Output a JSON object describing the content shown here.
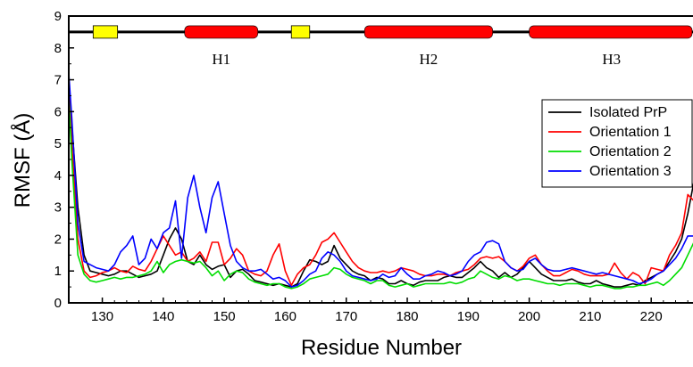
{
  "chart_data": {
    "type": "line",
    "xlabel": "Residue Number",
    "ylabel": "RMSF (Å)",
    "xlim": [
      124.5,
      227
    ],
    "ylim": [
      0,
      9
    ],
    "x_ticks": [
      130,
      140,
      150,
      160,
      170,
      180,
      190,
      200,
      210,
      220
    ],
    "y_ticks": [
      0,
      1,
      2,
      3,
      4,
      5,
      6,
      7,
      8,
      9
    ],
    "grid": false,
    "legend_position": "right",
    "secondary_structure": {
      "y": 8.5,
      "strands": [
        {
          "start": 128.5,
          "end": 132.5,
          "color": "#ffff00"
        },
        {
          "start": 161,
          "end": 164,
          "color": "#ffff00"
        }
      ],
      "helices": [
        {
          "start": 143.5,
          "end": 155.5,
          "label": "H1",
          "color": "#ff0000"
        },
        {
          "start": 173,
          "end": 194,
          "label": "H2",
          "color": "#ff0000"
        },
        {
          "start": 200,
          "end": 227,
          "label": "H3",
          "color": "#ff0000"
        }
      ]
    },
    "x": [
      124.5,
      125,
      126,
      127,
      128,
      129,
      130,
      131,
      132,
      133,
      134,
      135,
      136,
      137,
      138,
      139,
      140,
      141,
      142,
      143,
      144,
      145,
      146,
      147,
      148,
      149,
      150,
      151,
      152,
      153,
      154,
      155,
      156,
      157,
      158,
      159,
      160,
      161,
      162,
      163,
      164,
      165,
      166,
      167,
      168,
      169,
      170,
      171,
      172,
      173,
      174,
      175,
      176,
      177,
      178,
      179,
      180,
      181,
      182,
      183,
      184,
      185,
      186,
      187,
      188,
      189,
      190,
      191,
      192,
      193,
      194,
      195,
      196,
      197,
      198,
      199,
      200,
      201,
      202,
      203,
      204,
      205,
      206,
      207,
      208,
      209,
      210,
      211,
      212,
      213,
      214,
      215,
      216,
      217,
      218,
      219,
      220,
      221,
      222,
      223,
      224,
      225,
      226,
      227
    ],
    "series": [
      {
        "name": "Isolated PrP",
        "color": "#000000",
        "values": [
          7.0,
          5.6,
          3.0,
          1.5,
          1.0,
          0.95,
          0.9,
          0.85,
          0.9,
          1.0,
          1.0,
          0.9,
          0.8,
          0.85,
          0.9,
          1.0,
          1.5,
          2.0,
          2.35,
          2.0,
          1.3,
          1.2,
          1.5,
          1.2,
          1.05,
          1.15,
          1.2,
          0.8,
          1.0,
          1.05,
          0.9,
          0.7,
          0.65,
          0.6,
          0.55,
          0.6,
          0.55,
          0.5,
          0.6,
          1.0,
          1.35,
          1.3,
          1.2,
          1.3,
          1.8,
          1.4,
          1.2,
          1.0,
          0.9,
          0.85,
          0.7,
          0.8,
          0.75,
          0.6,
          0.6,
          0.7,
          0.6,
          0.55,
          0.65,
          0.7,
          0.7,
          0.7,
          0.8,
          0.85,
          0.8,
          0.8,
          0.95,
          1.1,
          1.3,
          1.1,
          1.0,
          0.8,
          0.95,
          0.8,
          0.9,
          1.1,
          1.3,
          1.1,
          0.9,
          0.8,
          0.7,
          0.7,
          0.7,
          0.75,
          0.65,
          0.6,
          0.6,
          0.7,
          0.6,
          0.55,
          0.5,
          0.5,
          0.55,
          0.6,
          0.55,
          0.7,
          0.8,
          0.9,
          1.0,
          1.3,
          1.6,
          2.0,
          2.8,
          3.8
        ]
      },
      {
        "name": "Orientation 1",
        "color": "#ff0000",
        "values": [
          6.8,
          5.0,
          2.0,
          1.0,
          0.8,
          0.85,
          0.95,
          1.0,
          1.1,
          1.0,
          0.95,
          1.15,
          1.05,
          1.0,
          1.3,
          1.7,
          2.1,
          1.8,
          1.5,
          1.6,
          1.3,
          1.4,
          1.6,
          1.3,
          1.9,
          1.9,
          1.2,
          1.4,
          1.7,
          1.5,
          1.0,
          0.9,
          0.85,
          1.0,
          1.5,
          1.85,
          1.0,
          0.55,
          0.9,
          1.1,
          1.2,
          1.5,
          1.9,
          2.0,
          2.2,
          1.9,
          1.6,
          1.3,
          1.1,
          1.0,
          0.95,
          0.95,
          1.0,
          0.95,
          1.0,
          1.1,
          1.05,
          1.0,
          0.9,
          0.85,
          0.85,
          0.9,
          0.9,
          0.85,
          0.95,
          1.0,
          1.05,
          1.2,
          1.4,
          1.45,
          1.4,
          1.45,
          1.3,
          1.1,
          1.0,
          1.15,
          1.4,
          1.5,
          1.2,
          1.0,
          0.85,
          0.85,
          0.95,
          1.05,
          1.0,
          0.9,
          0.85,
          0.85,
          0.85,
          0.9,
          1.25,
          0.95,
          0.75,
          0.95,
          0.85,
          0.6,
          1.1,
          1.05,
          1.0,
          1.5,
          1.8,
          2.2,
          3.4,
          3.2
        ]
      },
      {
        "name": "Orientation 2",
        "color": "#00dd00",
        "values": [
          6.5,
          4.5,
          1.5,
          0.9,
          0.7,
          0.65,
          0.7,
          0.75,
          0.8,
          0.75,
          0.8,
          0.8,
          0.85,
          0.9,
          1.0,
          1.3,
          0.95,
          1.2,
          1.3,
          1.35,
          1.3,
          1.25,
          1.3,
          1.1,
          0.85,
          1.0,
          0.7,
          0.9,
          1.0,
          0.95,
          0.75,
          0.65,
          0.6,
          0.55,
          0.6,
          0.6,
          0.5,
          0.45,
          0.5,
          0.6,
          0.75,
          0.8,
          0.85,
          0.9,
          1.1,
          1.05,
          0.9,
          0.8,
          0.75,
          0.7,
          0.6,
          0.7,
          0.7,
          0.55,
          0.5,
          0.55,
          0.6,
          0.5,
          0.55,
          0.6,
          0.6,
          0.6,
          0.6,
          0.65,
          0.6,
          0.65,
          0.75,
          0.8,
          1.0,
          0.9,
          0.8,
          0.75,
          0.85,
          0.8,
          0.7,
          0.75,
          0.75,
          0.7,
          0.65,
          0.6,
          0.6,
          0.55,
          0.6,
          0.6,
          0.6,
          0.55,
          0.5,
          0.55,
          0.55,
          0.5,
          0.45,
          0.45,
          0.5,
          0.5,
          0.55,
          0.55,
          0.6,
          0.65,
          0.55,
          0.7,
          0.9,
          1.1,
          1.5,
          1.9
        ]
      },
      {
        "name": "Orientation 3",
        "color": "#0000ff",
        "values": [
          7.2,
          5.8,
          2.5,
          1.3,
          1.2,
          1.1,
          1.05,
          1.0,
          1.2,
          1.6,
          1.8,
          2.1,
          1.2,
          1.4,
          2.0,
          1.7,
          2.2,
          2.35,
          3.2,
          1.4,
          3.3,
          4.0,
          3.0,
          2.2,
          3.3,
          3.8,
          2.8,
          1.8,
          1.3,
          1.1,
          1.0,
          1.0,
          1.05,
          0.9,
          0.75,
          0.8,
          0.7,
          0.5,
          0.55,
          0.7,
          0.9,
          1.0,
          1.4,
          1.6,
          1.5,
          1.3,
          1.0,
          0.85,
          0.8,
          0.75,
          0.7,
          0.75,
          0.9,
          0.8,
          0.85,
          1.1,
          0.9,
          0.75,
          0.75,
          0.85,
          0.9,
          1.0,
          0.95,
          0.85,
          0.9,
          1.0,
          1.3,
          1.5,
          1.6,
          1.9,
          1.95,
          1.85,
          1.3,
          1.1,
          1.0,
          1.05,
          1.3,
          1.4,
          1.2,
          1.05,
          1.0,
          1.0,
          1.05,
          1.1,
          1.05,
          1.0,
          0.95,
          0.9,
          0.95,
          0.9,
          0.85,
          0.8,
          0.75,
          0.7,
          0.6,
          0.65,
          0.75,
          0.9,
          1.0,
          1.2,
          1.4,
          1.7,
          2.1,
          2.1
        ]
      }
    ]
  }
}
